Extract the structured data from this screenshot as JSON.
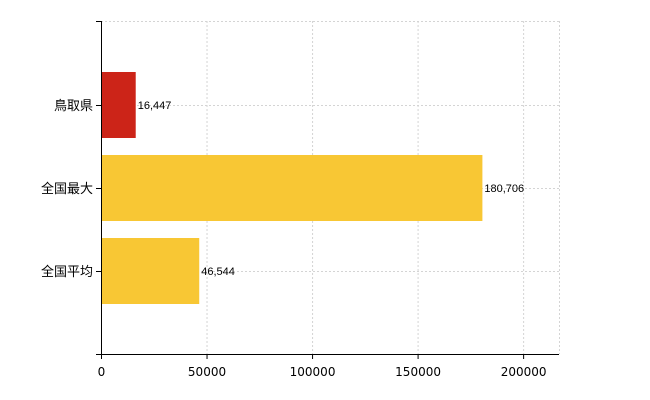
{
  "chart_data": {
    "type": "bar",
    "orientation": "horizontal",
    "categories": [
      "鳥取県",
      "全国最大",
      "全国平均"
    ],
    "values": [
      16447,
      180706,
      46544
    ],
    "value_labels": [
      "16,447",
      "180,706",
      "46,544"
    ],
    "bar_colors": [
      "#cc2418",
      "#f8c734",
      "#f8c734"
    ],
    "xlim": [
      0,
      217000
    ],
    "x_ticks": [
      0,
      50000,
      100000,
      150000,
      200000
    ],
    "x_tick_labels": [
      "0",
      "50000",
      "100000",
      "150000",
      "200000"
    ],
    "grid": true,
    "title": "",
    "xlabel": "",
    "ylabel": ""
  }
}
